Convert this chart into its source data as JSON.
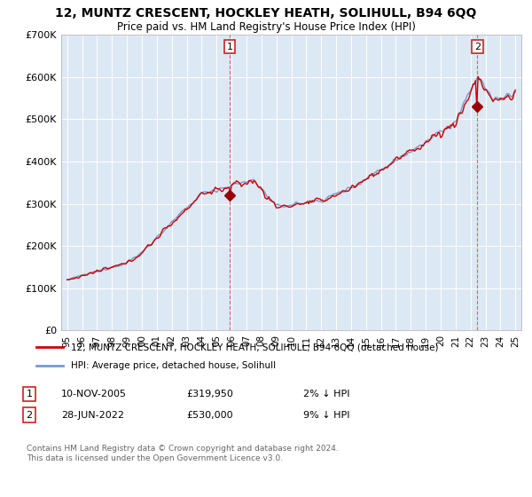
{
  "title_line1": "12, MUNTZ CRESCENT, HOCKLEY HEATH, SOLIHULL, B94 6QQ",
  "title_line2": "Price paid vs. HM Land Registry's House Price Index (HPI)",
  "ylim": [
    0,
    700000
  ],
  "yticks": [
    0,
    100000,
    200000,
    300000,
    400000,
    500000,
    600000,
    700000
  ],
  "hpi_color": "#7799cc",
  "price_color": "#cc0000",
  "marker_color": "#990000",
  "sale1_date": "10-NOV-2005",
  "sale1_price": "£319,950",
  "sale1_hpi": "2% ↓ HPI",
  "sale1_price_val": 319950,
  "sale1_t": 2005.875,
  "sale2_date": "28-JUN-2022",
  "sale2_price": "£530,000",
  "sale2_hpi": "9% ↓ HPI",
  "sale2_price_val": 530000,
  "sale2_t": 2022.458,
  "legend_line1": "12, MUNTZ CRESCENT, HOCKLEY HEATH, SOLIHULL, B94 6QQ (detached house)",
  "legend_line2": "HPI: Average price, detached house, Solihull",
  "footnote": "Contains HM Land Registry data © Crown copyright and database right 2024.\nThis data is licensed under the Open Government Licence v3.0.",
  "background_color": "#ffffff",
  "plot_bg_color": "#dde8f5",
  "grid_color": "#ffffff",
  "vline_color": "#dd4444"
}
